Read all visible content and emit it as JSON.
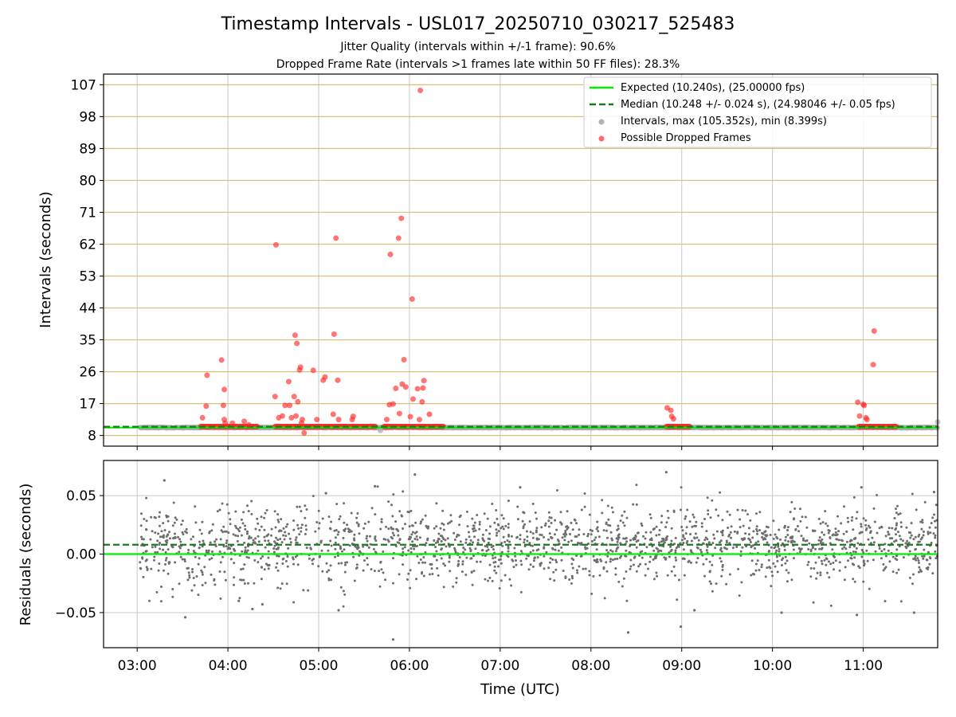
{
  "title": "Timestamp Intervals - USL017_20250710_030217_525483",
  "subtitle_jitter": "Jitter Quality (intervals within +/-1 frame): 90.6%",
  "subtitle_dropped": "Dropped Frame Rate (intervals >1 frames late within 50 FF files): 28.3%",
  "colors": {
    "expected": "#00ee00",
    "median": "#1b7a1b",
    "intervals": "#a9a9a9",
    "dropped": "#ff2a2a",
    "hgrid_top": "#d8c07a",
    "grid": "#c8c8c8",
    "residual_points": "#6e6e6e"
  },
  "chart_data": [
    {
      "type": "scatter",
      "panel": "intervals",
      "title": "Timestamp Intervals - USL017_20250710_030217_525483",
      "ylabel": "Intervals (seconds)",
      "xlabel": "",
      "x_unit": "hours UTC",
      "xlim": [
        2.63,
        11.82
      ],
      "ylim": [
        5.0,
        110.0
      ],
      "yticks": [
        "8",
        "17",
        "26",
        "35",
        "44",
        "53",
        "62",
        "71",
        "80",
        "89",
        "98",
        "107"
      ],
      "grid": true,
      "legend_position": "top-right",
      "legend": [
        {
          "label": "Expected (10.240s), (25.00000 fps)",
          "type": "line",
          "style": "solid",
          "color": "#00ee00"
        },
        {
          "label": "Median (10.248 +/- 0.024 s), (24.98046 +/- 0.05 fps)",
          "type": "line",
          "style": "dashed",
          "color": "#1b7a1b"
        },
        {
          "label": "Intervals, max (105.352s), min (8.399s)",
          "type": "marker",
          "color": "#a9a9a9"
        },
        {
          "label": "Possible Dropped Frames",
          "type": "marker",
          "color": "#ff2a2a"
        }
      ],
      "expected_interval": 10.24,
      "median_interval": 10.248,
      "interval_max": 105.352,
      "interval_min": 8.399,
      "intervals_series": {
        "name": "Intervals, max (105.352s), min (8.399s)",
        "x_range": [
          3.03,
          11.82
        ],
        "baseline": 10.24,
        "x": [
          3.05,
          5.37,
          5.62,
          5.68,
          11.82
        ],
        "y": [
          10.2,
          10.5,
          10.2,
          9.4,
          11.8
        ]
      },
      "dropped_clusters": [
        {
          "x_start": 3.7,
          "x_end": 4.33,
          "y": 10.5
        },
        {
          "x_start": 4.52,
          "x_end": 5.63,
          "y": 10.5
        },
        {
          "x_start": 5.72,
          "x_end": 6.38,
          "y": 10.5
        },
        {
          "x_start": 8.83,
          "x_end": 9.09,
          "y": 10.5
        },
        {
          "x_start": 10.95,
          "x_end": 11.37,
          "y": 10.5
        }
      ],
      "dropped_series": {
        "name": "Possible Dropped Frames",
        "x": [
          3.72,
          3.77,
          3.76,
          3.93,
          3.95,
          3.96,
          3.96,
          3.97,
          4.05,
          4.18,
          4.23,
          4.52,
          4.53,
          4.56,
          4.6,
          4.63,
          4.67,
          4.68,
          4.7,
          4.73,
          4.74,
          4.75,
          4.76,
          4.77,
          4.79,
          4.8,
          4.81,
          4.82,
          4.84,
          4.94,
          4.98,
          5.05,
          5.07,
          5.16,
          5.17,
          5.19,
          5.21,
          5.22,
          5.37,
          5.38,
          5.75,
          5.78,
          5.79,
          5.82,
          5.85,
          5.88,
          5.89,
          5.91,
          5.92,
          5.94,
          5.96,
          6.01,
          6.03,
          6.04,
          6.09,
          6.11,
          6.12,
          6.14,
          6.15,
          6.16,
          6.22,
          10.94,
          10.96,
          11.0,
          11.01,
          11.03,
          11.04,
          11.11,
          11.12,
          8.84,
          8.88,
          8.89,
          8.91
        ],
        "y": [
          13.0,
          25.0,
          16.3,
          29.3,
          16.5,
          21.0,
          12.5,
          11.5,
          11.5,
          12.0,
          11.0,
          19.0,
          61.8,
          13.0,
          13.5,
          16.5,
          23.2,
          16.5,
          13.0,
          19.0,
          36.3,
          13.5,
          34.0,
          17.5,
          26.5,
          27.3,
          11.5,
          12.5,
          8.7,
          26.4,
          12.5,
          23.6,
          24.5,
          14.0,
          36.6,
          63.7,
          23.6,
          12.5,
          12.5,
          13.4,
          12.5,
          16.7,
          59.1,
          16.9,
          21.3,
          63.7,
          14.2,
          69.3,
          22.5,
          29.4,
          21.7,
          13.3,
          46.5,
          18.3,
          21.2,
          12.5,
          105.4,
          17.5,
          21.4,
          23.5,
          14.0,
          17.4,
          13.5,
          16.8,
          16.5,
          13.0,
          12.5,
          28.0,
          37.5,
          15.8,
          15.1,
          13.4,
          12.7
        ]
      }
    },
    {
      "type": "scatter",
      "panel": "residuals",
      "ylabel": "Residuals (seconds)",
      "xlabel": "Time (UTC)",
      "x_unit": "hours UTC",
      "xlim": [
        2.63,
        11.82
      ],
      "ylim": [
        -0.08,
        0.08
      ],
      "yticks": [
        "−0.05",
        "0.00",
        "0.05"
      ],
      "xticks": [
        "03:00",
        "04:00",
        "05:00",
        "06:00",
        "07:00",
        "08:00",
        "09:00",
        "10:00",
        "11:00"
      ],
      "grid": true,
      "expected_residual": 0.0,
      "median_residual": 0.008,
      "residual_cloud": {
        "x_range": [
          3.03,
          11.82
        ],
        "y_range": [
          -0.045,
          0.06
        ],
        "approx_points": 1900
      },
      "outliers": {
        "x": [
          3.3,
          3.53,
          4.27,
          4.38,
          5.22,
          5.62,
          5.82,
          6.06,
          7.22,
          8.41,
          8.83,
          8.99,
          9.14,
          10.1,
          10.93,
          10.98,
          11.56,
          11.78,
          4.12,
          5.08
        ],
        "y": [
          0.063,
          -0.054,
          -0.047,
          -0.043,
          -0.048,
          0.058,
          -0.073,
          0.068,
          0.057,
          -0.067,
          0.07,
          -0.062,
          -0.048,
          -0.05,
          -0.052,
          0.057,
          -0.05,
          0.053,
          -0.04,
          0.052
        ]
      }
    }
  ]
}
